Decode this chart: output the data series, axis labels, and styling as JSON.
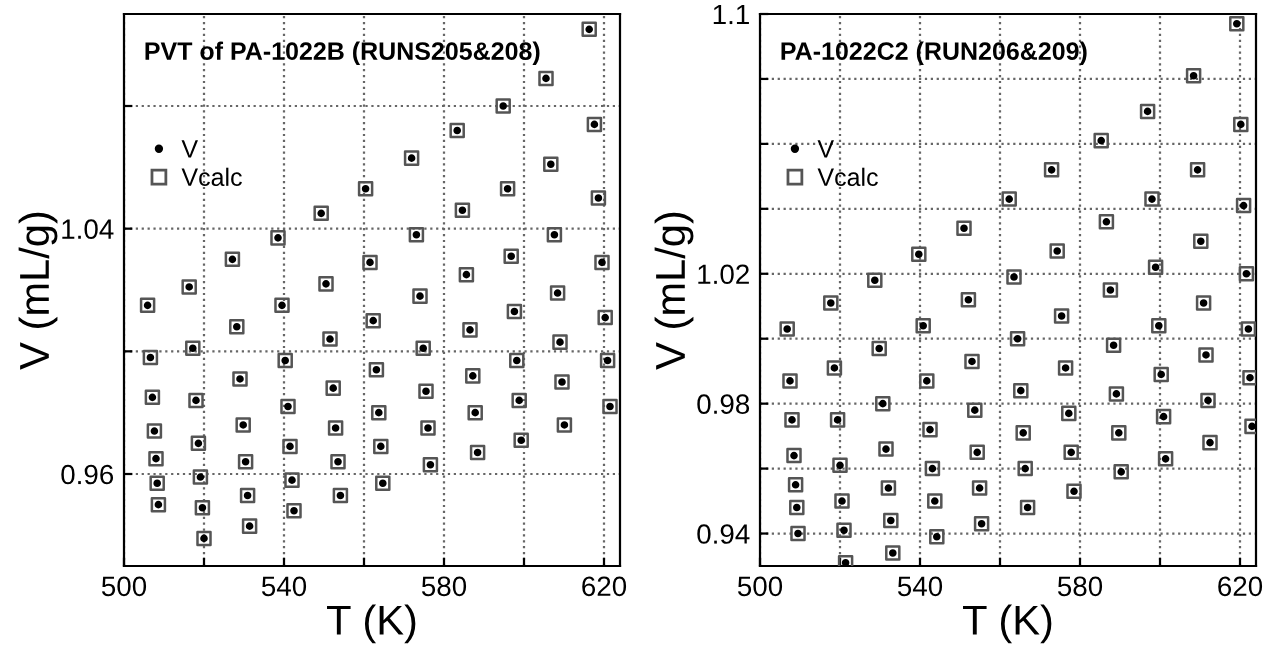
{
  "chart_data": [
    {
      "type": "scatter",
      "title": "PVT of PA-1022B (RUNS205&208)",
      "xlabel": "T (K)",
      "ylabel": "V (mL/g)",
      "xlim": [
        500,
        624
      ],
      "ylim": [
        0.93,
        1.11
      ],
      "xticks": [
        500,
        {
          "value": 520,
          "label": null
        },
        540,
        {
          "value": 560,
          "label": null
        },
        580,
        {
          "value": 600,
          "label": null
        },
        620
      ],
      "yticks": [
        0.96,
        {
          "value": 1.0,
          "label": null
        },
        1.04,
        {
          "value": 1.08,
          "label": null
        }
      ],
      "grid": true,
      "legend": "top left",
      "series": [
        {
          "name": "V",
          "color": "#000000",
          "marker": "circle",
          "x": [
            505.9,
            506.6,
            507.1,
            507.6,
            508.0,
            508.3,
            508.6,
            516.3,
            517.2,
            518.0,
            518.6,
            519.1,
            519.6,
            520.0,
            527.1,
            528.2,
            529.0,
            529.8,
            530.4,
            530.9,
            531.4,
            538.5,
            539.5,
            540.3,
            541.0,
            541.5,
            542.0,
            542.5,
            549.3,
            550.5,
            551.5,
            552.3,
            552.9,
            553.5,
            554.1,
            560.4,
            561.5,
            562.3,
            563.1,
            563.7,
            564.2,
            564.7,
            571.9,
            573.1,
            574.0,
            574.8,
            575.5,
            576.0,
            576.6,
            583.3,
            584.6,
            585.6,
            586.5,
            587.2,
            587.8,
            588.4,
            594.8,
            595.9,
            596.8,
            597.6,
            598.2,
            598.8,
            599.3,
            605.5,
            606.7,
            607.6,
            608.4,
            609.0,
            609.5,
            610.1,
            616.3,
            617.6,
            618.6,
            619.5,
            620.3,
            620.9,
            621.5
          ],
          "values": [
            1.015,
            0.998,
            0.985,
            0.974,
            0.965,
            0.957,
            0.95,
            1.021,
            1.001,
            0.984,
            0.97,
            0.959,
            0.949,
            0.939,
            1.03,
            1.008,
            0.991,
            0.976,
            0.964,
            0.953,
            0.943,
            1.037,
            1.015,
            0.997,
            0.982,
            0.969,
            0.958,
            0.948,
            1.045,
            1.022,
            1.004,
            0.988,
            0.975,
            0.964,
            0.953,
            1.053,
            1.029,
            1.01,
            0.994,
            0.98,
            0.969,
            0.957,
            1.063,
            1.038,
            1.018,
            1.001,
            0.987,
            0.975,
            0.963,
            1.072,
            1.046,
            1.025,
            1.007,
            0.992,
            0.98,
            0.967,
            1.08,
            1.053,
            1.031,
            1.013,
            0.997,
            0.984,
            0.971,
            1.089,
            1.061,
            1.038,
            1.019,
            1.003,
            0.99,
            0.976,
            1.105,
            1.074,
            1.05,
            1.029,
            1.011,
            0.997,
            0.982
          ]
        },
        {
          "name": "Vcalc",
          "color": "#555555",
          "marker": "square",
          "x": [
            505.9,
            506.6,
            507.1,
            507.6,
            508.0,
            508.3,
            508.6,
            516.3,
            517.2,
            518.0,
            518.6,
            519.1,
            519.6,
            520.0,
            527.1,
            528.2,
            529.0,
            529.8,
            530.4,
            530.9,
            531.4,
            538.5,
            539.5,
            540.3,
            541.0,
            541.5,
            542.0,
            542.5,
            549.3,
            550.5,
            551.5,
            552.3,
            552.9,
            553.5,
            554.1,
            560.4,
            561.5,
            562.3,
            563.1,
            563.7,
            564.2,
            564.7,
            571.9,
            573.1,
            574.0,
            574.8,
            575.5,
            576.0,
            576.6,
            583.3,
            584.6,
            585.6,
            586.5,
            587.2,
            587.8,
            588.4,
            594.8,
            595.9,
            596.8,
            597.6,
            598.2,
            598.8,
            599.3,
            605.5,
            606.7,
            607.6,
            608.4,
            609.0,
            609.5,
            610.1,
            616.3,
            617.6,
            618.6,
            619.5,
            620.3,
            620.9,
            621.5
          ],
          "values": [
            1.015,
            0.998,
            0.985,
            0.974,
            0.965,
            0.957,
            0.95,
            1.021,
            1.001,
            0.984,
            0.97,
            0.959,
            0.949,
            0.939,
            1.03,
            1.008,
            0.991,
            0.976,
            0.964,
            0.953,
            0.943,
            1.037,
            1.015,
            0.997,
            0.982,
            0.969,
            0.958,
            0.948,
            1.045,
            1.022,
            1.004,
            0.988,
            0.975,
            0.964,
            0.953,
            1.053,
            1.029,
            1.01,
            0.994,
            0.98,
            0.969,
            0.957,
            1.063,
            1.038,
            1.018,
            1.001,
            0.987,
            0.975,
            0.963,
            1.072,
            1.046,
            1.025,
            1.007,
            0.992,
            0.98,
            0.967,
            1.08,
            1.053,
            1.031,
            1.013,
            0.997,
            0.984,
            0.971,
            1.089,
            1.061,
            1.038,
            1.019,
            1.003,
            0.99,
            0.976,
            1.105,
            1.074,
            1.05,
            1.029,
            1.011,
            0.997,
            0.982
          ]
        }
      ]
    },
    {
      "type": "scatter",
      "title": "PA-1022C2 (RUN206&209)",
      "xlabel": "T (K)",
      "ylabel": "V (mL/g)",
      "xlim": [
        500,
        624
      ],
      "ylim": [
        0.93,
        1.1
      ],
      "xticks": [
        500,
        {
          "value": 520,
          "label": null
        },
        540,
        {
          "value": 560,
          "label": null
        },
        580,
        {
          "value": 600,
          "label": null
        },
        620
      ],
      "yticks": [
        0.94,
        {
          "value": 0.96,
          "label": null
        },
        0.98,
        {
          "value": 1.0,
          "label": null
        },
        1.02,
        {
          "value": 1.04,
          "label": null
        },
        {
          "value": 1.06,
          "label": null
        },
        {
          "value": 1.08,
          "label": null
        },
        1.1
      ],
      "grid": true,
      "legend": "top left",
      "series": [
        {
          "name": "V",
          "color": "#000000",
          "marker": "circle",
          "x": [
            506.8,
            507.5,
            508.0,
            508.5,
            508.9,
            509.2,
            509.5,
            517.7,
            518.6,
            519.4,
            520.0,
            520.5,
            521.0,
            521.4,
            528.7,
            529.8,
            530.7,
            531.5,
            532.1,
            532.7,
            533.2,
            539.7,
            540.8,
            541.7,
            542.5,
            543.1,
            543.7,
            544.2,
            551.0,
            552.1,
            553.0,
            553.7,
            554.3,
            554.9,
            555.4,
            562.3,
            563.5,
            564.4,
            565.2,
            565.8,
            566.3,
            566.9,
            572.9,
            574.3,
            575.4,
            576.4,
            577.2,
            577.8,
            578.5,
            585.3,
            586.6,
            587.6,
            588.4,
            589.1,
            589.7,
            590.3,
            596.9,
            598.0,
            598.9,
            599.7,
            600.3,
            600.9,
            601.4,
            608.4,
            609.4,
            610.2,
            610.9,
            611.5,
            612.0,
            612.5,
            619.2,
            620.2,
            620.9,
            621.6,
            622.1,
            622.5,
            623.0
          ],
          "values": [
            1.003,
            0.987,
            0.975,
            0.964,
            0.955,
            0.948,
            0.94,
            1.011,
            0.991,
            0.975,
            0.961,
            0.95,
            0.941,
            0.931,
            1.018,
            0.997,
            0.98,
            0.966,
            0.954,
            0.944,
            0.934,
            1.026,
            1.004,
            0.987,
            0.972,
            0.96,
            0.95,
            0.939,
            1.034,
            1.012,
            0.993,
            0.978,
            0.965,
            0.954,
            0.943,
            1.043,
            1.019,
            1.0,
            0.984,
            0.971,
            0.96,
            0.948,
            1.052,
            1.027,
            1.007,
            0.991,
            0.977,
            0.965,
            0.953,
            1.061,
            1.036,
            1.015,
            0.998,
            0.983,
            0.971,
            0.959,
            1.07,
            1.043,
            1.022,
            1.004,
            0.989,
            0.976,
            0.963,
            1.081,
            1.052,
            1.03,
            1.011,
            0.995,
            0.981,
            0.968,
            1.097,
            1.066,
            1.041,
            1.02,
            1.003,
            0.988,
            0.973
          ]
        },
        {
          "name": "Vcalc",
          "color": "#555555",
          "marker": "square",
          "x": [
            506.8,
            507.5,
            508.0,
            508.5,
            508.9,
            509.2,
            509.5,
            517.7,
            518.6,
            519.4,
            520.0,
            520.5,
            521.0,
            521.4,
            528.7,
            529.8,
            530.7,
            531.5,
            532.1,
            532.7,
            533.2,
            539.7,
            540.8,
            541.7,
            542.5,
            543.1,
            543.7,
            544.2,
            551.0,
            552.1,
            553.0,
            553.7,
            554.3,
            554.9,
            555.4,
            562.3,
            563.5,
            564.4,
            565.2,
            565.8,
            566.3,
            566.9,
            572.9,
            574.3,
            575.4,
            576.4,
            577.2,
            577.8,
            578.5,
            585.3,
            586.6,
            587.6,
            588.4,
            589.1,
            589.7,
            590.3,
            596.9,
            598.0,
            598.9,
            599.7,
            600.3,
            600.9,
            601.4,
            608.4,
            609.4,
            610.2,
            610.9,
            611.5,
            612.0,
            612.5,
            619.2,
            620.2,
            620.9,
            621.6,
            622.1,
            622.5,
            623.0
          ],
          "values": [
            1.003,
            0.987,
            0.975,
            0.964,
            0.955,
            0.948,
            0.94,
            1.011,
            0.991,
            0.975,
            0.961,
            0.95,
            0.941,
            0.931,
            1.018,
            0.997,
            0.98,
            0.966,
            0.954,
            0.944,
            0.934,
            1.026,
            1.004,
            0.987,
            0.972,
            0.96,
            0.95,
            0.939,
            1.034,
            1.012,
            0.993,
            0.978,
            0.965,
            0.954,
            0.943,
            1.043,
            1.019,
            1.0,
            0.984,
            0.971,
            0.96,
            0.948,
            1.052,
            1.027,
            1.007,
            0.991,
            0.977,
            0.965,
            0.953,
            1.061,
            1.036,
            1.015,
            0.998,
            0.983,
            0.971,
            0.959,
            1.07,
            1.043,
            1.022,
            1.004,
            0.989,
            0.976,
            0.963,
            1.081,
            1.052,
            1.03,
            1.011,
            0.995,
            0.981,
            0.968,
            1.097,
            1.066,
            1.041,
            1.02,
            1.003,
            0.988,
            0.973
          ]
        }
      ]
    }
  ]
}
